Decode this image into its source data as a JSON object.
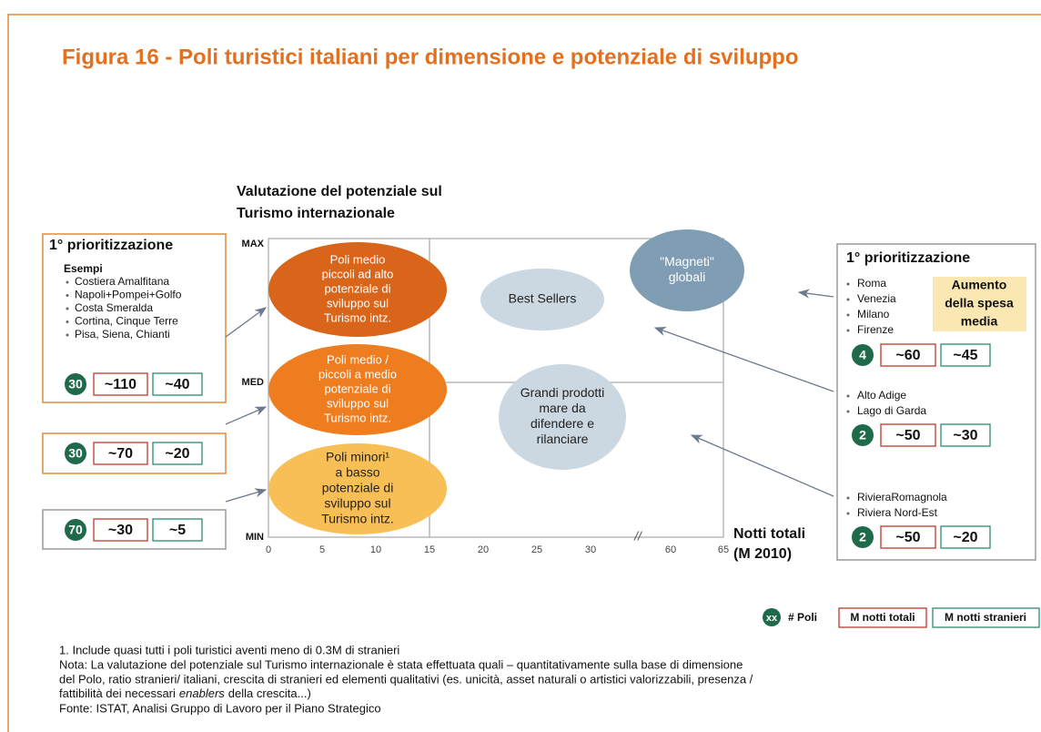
{
  "title": "Figura 16 - Poli turistici italiani per dimensione e potenziale di sviluppo",
  "y_axis_title": [
    "Valutazione del potenziale sul",
    "Turismo internazionale"
  ],
  "y_levels": [
    "MAX",
    "MED",
    "MIN"
  ],
  "x_ticks": [
    0,
    5,
    10,
    15,
    20,
    25,
    30,
    60,
    65
  ],
  "axis_break": "//",
  "x_axis_title": [
    "Notti totali",
    "(M 2010)"
  ],
  "bubbles": [
    {
      "lines": [
        "Poli medio",
        "piccoli ad alto",
        "potenziale di",
        "sviluppo sul",
        "Turismo intz."
      ]
    },
    {
      "lines": [
        "Poli medio /",
        "piccoli a medio",
        "potenziale di",
        "sviluppo sul",
        "Turismo intz."
      ]
    },
    {
      "lines": [
        "Poli minori¹",
        "a basso",
        "potenziale di",
        "sviluppo sul",
        "Turismo intz."
      ]
    },
    {
      "lines": [
        "Best Sellers"
      ]
    },
    {
      "lines": [
        "\"Magneti\"",
        "globali"
      ]
    },
    {
      "lines": [
        "Grandi prodotti",
        "mare da",
        "difendere e",
        "rilanciare"
      ]
    }
  ],
  "left_panel": {
    "heading": "1° prioritizzazione",
    "examples_label": "Esempi",
    "examples": [
      "Costiera Amalfitana",
      "Napoli+Pompei+Golfo",
      "Costa Smeralda",
      "Cortina, Cinque Terre",
      "Pisa, Siena, Chianti"
    ],
    "rows": [
      {
        "poli": 30,
        "notti_totali": "~110",
        "notti_stranieri": "~40"
      },
      {
        "poli": 30,
        "notti_totali": "~70",
        "notti_stranieri": "~20"
      },
      {
        "poli": 70,
        "notti_totali": "~30",
        "notti_stranieri": "~5"
      }
    ]
  },
  "right_panel": {
    "heading": "1° prioritizzazione",
    "callout": [
      "Aumento",
      "della spesa",
      "media"
    ],
    "groups": [
      {
        "items": [
          "Roma",
          "Venezia",
          "Milano",
          "Firenze"
        ],
        "poli": 4,
        "notti_totali": "~60",
        "notti_stranieri": "~45"
      },
      {
        "items": [
          "Alto Adige",
          "Lago di Garda"
        ],
        "poli": 2,
        "notti_totali": "~50",
        "notti_stranieri": "~30"
      },
      {
        "items": [
          "RivieraRomagnola",
          "Riviera Nord-Est"
        ],
        "poli": 2,
        "notti_totali": "~50",
        "notti_stranieri": "~20"
      }
    ]
  },
  "legend": {
    "badge": "xx",
    "poli": "# Poli",
    "notti_totali": "M notti totali",
    "notti_stranieri": "M notti stranieri"
  },
  "notes": {
    "footnote": "1. Include quasi tutti i poli turistici aventi meno di 0.3M di stranieri",
    "nota": [
      "Nota: La valutazione del potenziale sul Turismo internazionale è stata effettuata quali – quantitativamente sulla base di dimensione",
      "del Polo, ratio stranieri/ italiani, crescita di stranieri ed elementi qualitativi (es. unicità, asset naturali o artistici valorizzabili, presenza /"
    ],
    "nota_last": {
      "before": "fattibilità dei necessari",
      "italic": "enablers",
      "after": "della crescita...)"
    },
    "source": "Fonte: ISTAT, Analisi Gruppo di Lavoro per il Piano Strategico"
  }
}
